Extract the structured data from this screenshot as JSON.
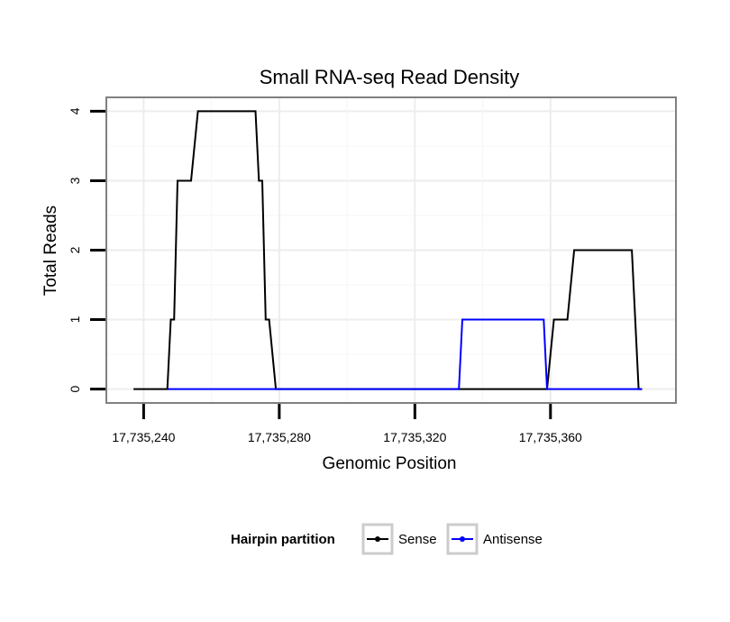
{
  "chart_data": {
    "type": "line",
    "title": "Small RNA-seq Read Density",
    "xlabel": "Genomic Position",
    "ylabel": "Total Reads",
    "xlim": [
      17735229,
      17735397
    ],
    "ylim": [
      -0.2,
      4.2
    ],
    "x_ticks": [
      17735240,
      17735280,
      17735320,
      17735360
    ],
    "x_tick_labels": [
      "17,735,240",
      "17,735,280",
      "17,735,320",
      "17,735,360"
    ],
    "y_ticks": [
      0,
      1,
      2,
      3,
      4
    ],
    "y_tick_labels": [
      "0",
      "1",
      "2",
      "3",
      "4"
    ],
    "grid": true,
    "legend": {
      "title": "Hairpin partition",
      "position": "bottom",
      "entries": [
        "Sense",
        "Antisense"
      ]
    },
    "series": [
      {
        "name": "Sense",
        "color": "#000000",
        "x": [
          17735237,
          17735247,
          17735248,
          17735249,
          17735250,
          17735254,
          17735256,
          17735273,
          17735274,
          17735275,
          17735276,
          17735277,
          17735279,
          17735280,
          17735333,
          17735359,
          17735361,
          17735365,
          17735367,
          17735384,
          17735386,
          17735387
        ],
        "y": [
          0,
          0,
          1,
          1,
          3,
          3,
          4,
          4,
          3,
          3,
          1,
          1,
          0,
          0,
          0,
          0,
          1,
          1,
          2,
          2,
          0,
          0
        ]
      },
      {
        "name": "Antisense",
        "color": "#0000ff",
        "x": [
          17735247,
          17735333,
          17735334,
          17735358,
          17735359,
          17735387
        ],
        "y": [
          0,
          0,
          1,
          1,
          0,
          0
        ]
      }
    ]
  }
}
